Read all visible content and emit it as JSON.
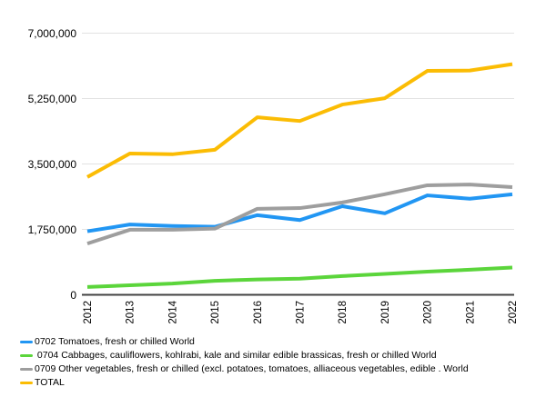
{
  "chart_data": {
    "type": "line",
    "title": "",
    "x": [
      "2012",
      "2013",
      "2014",
      "2015",
      "2016",
      "2017",
      "2018",
      "2019",
      "2020",
      "2021",
      "2022"
    ],
    "series": [
      {
        "label": "0702 Tomatoes, fresh or chilled World",
        "color": "#2196F3",
        "values": [
          1700000,
          1880000,
          1840000,
          1820000,
          2130000,
          2000000,
          2370000,
          2180000,
          2660000,
          2570000,
          2690000
        ]
      },
      {
        "label": " 0704 Cabbages, cauliflowers, kohlrabi, kale and similar edible brassicas, fresh or chilled World",
        "color": "#5BD53B",
        "values": [
          210000,
          255000,
          300000,
          375000,
          410000,
          430000,
          500000,
          560000,
          620000,
          670000,
          730000
        ]
      },
      {
        "label": "0709 Other vegetables, fresh or chilled (excl. potatoes, tomatoes, alliaceous vegetables, edible . World",
        "color": "#9E9E9E",
        "values": [
          1370000,
          1740000,
          1740000,
          1770000,
          2300000,
          2320000,
          2470000,
          2690000,
          2930000,
          2950000,
          2880000
        ]
      },
      {
        "label": "TOTAL",
        "color": "#FBBC04",
        "values": [
          3150000,
          3780000,
          3760000,
          3880000,
          4750000,
          4650000,
          5090000,
          5260000,
          5990000,
          6000000,
          6170000
        ]
      }
    ],
    "ylim": [
      0,
      7000000
    ],
    "yticks": [
      0,
      1750000,
      3500000,
      5250000,
      7000000
    ],
    "ytick_labels": [
      "0",
      "1,750,000",
      "3,500,000",
      "5,250,000",
      "7,000,000"
    ],
    "grid": true,
    "legend_position": "bottom-left",
    "colors": {
      "gridline": "#E2E2E2",
      "axis": "#424242",
      "tick_text": "#000000"
    }
  }
}
